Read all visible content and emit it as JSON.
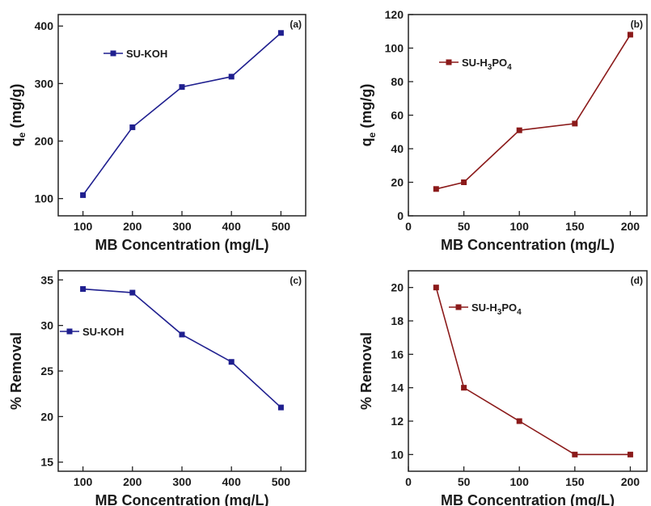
{
  "chart_data": [
    {
      "type": "line",
      "panel_label": "(a)",
      "xlabel": "MB Concentration (mg/L)",
      "ylabel": "q",
      "ylabel_sub": "e",
      "ylabel_tail": " (mg/g)",
      "xlim": [
        50,
        550
      ],
      "ylim": [
        70,
        420
      ],
      "xticks": [
        100,
        200,
        300,
        400,
        500
      ],
      "yticks": [
        100,
        200,
        300,
        400
      ],
      "legend_position": "top-center",
      "series": [
        {
          "name": "SU-KOH",
          "name_sub": "",
          "name_tail": "",
          "color": "#1f1f8f",
          "x": [
            100,
            200,
            300,
            400,
            500
          ],
          "y": [
            106,
            224,
            294,
            312,
            388
          ]
        }
      ]
    },
    {
      "type": "line",
      "panel_label": "(b)",
      "xlabel": "MB Concentration (mg/L)",
      "ylabel": "q",
      "ylabel_sub": "e",
      "ylabel_tail": " (mg/g)",
      "xlim": [
        0,
        215
      ],
      "ylim": [
        0,
        120
      ],
      "xticks": [
        0,
        50,
        100,
        150,
        200
      ],
      "yticks": [
        0,
        20,
        40,
        60,
        80,
        100,
        120
      ],
      "legend_position": "top-left",
      "series": [
        {
          "name": "SU-H",
          "name_sub": "3",
          "name_tail": "PO",
          "name_sub2": "4",
          "color": "#8b1a1a",
          "x": [
            25,
            50,
            100,
            150,
            200
          ],
          "y": [
            16,
            20,
            51,
            55,
            108
          ]
        }
      ]
    },
    {
      "type": "line",
      "panel_label": "(c)",
      "xlabel": "MB Concentration (mg/L)",
      "ylabel": "% Removal",
      "xlim": [
        50,
        550
      ],
      "ylim": [
        14,
        36
      ],
      "xticks": [
        100,
        200,
        300,
        400,
        500
      ],
      "yticks": [
        15,
        20,
        25,
        30,
        35
      ],
      "legend_position": "middle-left",
      "series": [
        {
          "name": "SU-KOH",
          "name_sub": "",
          "name_tail": "",
          "color": "#1f1f8f",
          "x": [
            100,
            200,
            300,
            400,
            500
          ],
          "y": [
            34,
            33.6,
            29,
            26,
            21
          ]
        }
      ]
    },
    {
      "type": "line",
      "panel_label": "(d)",
      "xlabel": "MB Concentration (mg/L)",
      "ylabel": "% Removal",
      "xlim": [
        0,
        215
      ],
      "ylim": [
        9,
        21
      ],
      "xticks": [
        0,
        50,
        100,
        150,
        200
      ],
      "yticks": [
        10,
        12,
        14,
        16,
        18,
        20
      ],
      "legend_position": "top-left",
      "series": [
        {
          "name": "SU-H",
          "name_sub": "3",
          "name_tail": "PO",
          "name_sub2": "4",
          "color": "#8b1a1a",
          "x": [
            25,
            50,
            100,
            150,
            200
          ],
          "y": [
            20,
            14,
            12,
            10,
            10
          ]
        }
      ]
    }
  ]
}
